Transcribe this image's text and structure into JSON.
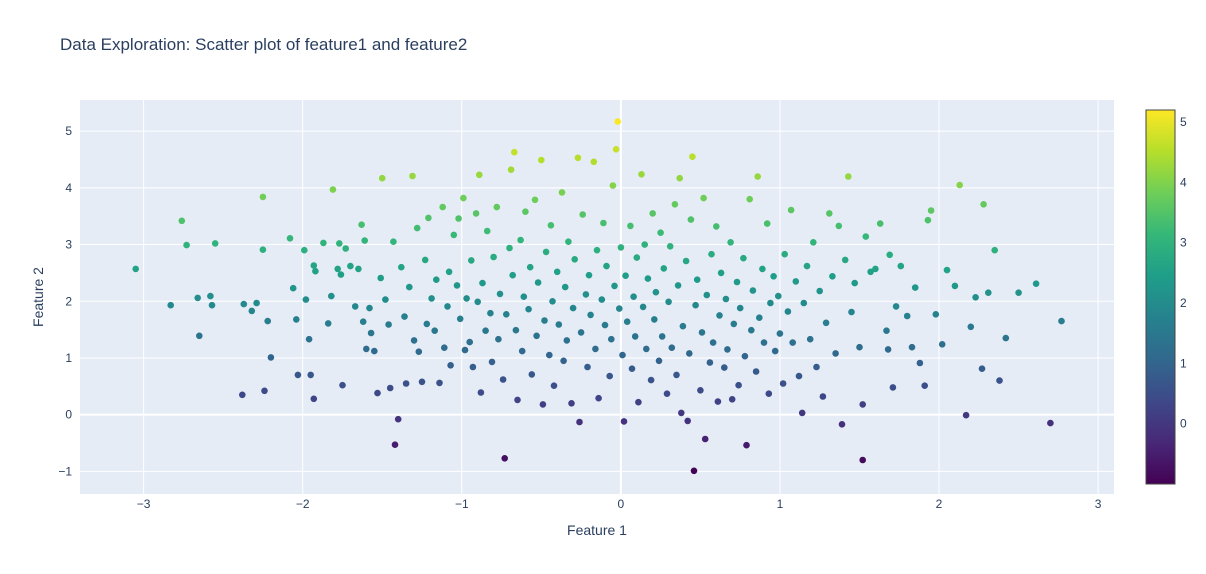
{
  "chart_data": {
    "type": "scatter",
    "title": "Data Exploration: Scatter plot of feature1 and feature2",
    "xlabel": "Feature 1",
    "ylabel": "Feature 2",
    "xlim": [
      -3.4,
      3.1
    ],
    "ylim": [
      -1.4,
      5.55
    ],
    "x_ticks": [
      -3,
      -2,
      -1,
      0,
      1,
      2,
      3
    ],
    "x_tick_labels": [
      "−3",
      "−2",
      "−1",
      "0",
      "1",
      "2",
      "3"
    ],
    "y_ticks": [
      -1,
      0,
      1,
      2,
      3,
      4,
      5
    ],
    "y_tick_labels": [
      "−1",
      "0",
      "1",
      "2",
      "3",
      "4",
      "5"
    ],
    "colorbar": {
      "colorscale": "Viridis",
      "range": [
        -1.0,
        5.2
      ],
      "ticks": [
        0,
        1,
        2,
        3,
        4,
        5
      ],
      "tick_labels": [
        "0",
        "1",
        "2",
        "3",
        "4",
        "5"
      ]
    },
    "grid": true,
    "colors": {
      "plot_bg": "#e5ecf6",
      "grid": "#ffffff",
      "text": "#2a3f5f"
    },
    "color_encodes": "y",
    "points": [
      [
        -3.05,
        2.57
      ],
      [
        -2.83,
        1.93
      ],
      [
        -2.76,
        3.42
      ],
      [
        -2.73,
        2.99
      ],
      [
        -2.66,
        2.06
      ],
      [
        -2.65,
        1.39
      ],
      [
        -2.58,
        2.09
      ],
      [
        -2.57,
        1.93
      ],
      [
        -2.55,
        3.02
      ],
      [
        -2.38,
        0.35
      ],
      [
        -2.37,
        1.95
      ],
      [
        -2.32,
        1.83
      ],
      [
        -2.29,
        1.97
      ],
      [
        -2.25,
        3.84
      ],
      [
        -2.25,
        2.91
      ],
      [
        -2.24,
        0.42
      ],
      [
        -2.22,
        1.65
      ],
      [
        -2.2,
        1.01
      ],
      [
        -2.08,
        3.11
      ],
      [
        -2.06,
        2.23
      ],
      [
        -2.04,
        1.68
      ],
      [
        -2.03,
        0.7
      ],
      [
        -1.99,
        2.9
      ],
      [
        -1.98,
        2.03
      ],
      [
        -1.96,
        1.33
      ],
      [
        -1.95,
        0.7
      ],
      [
        -1.93,
        0.28
      ],
      [
        -1.93,
        2.63
      ],
      [
        -1.92,
        2.53
      ],
      [
        -1.87,
        3.03
      ],
      [
        -1.84,
        1.61
      ],
      [
        -1.82,
        2.09
      ],
      [
        -1.81,
        3.97
      ],
      [
        -1.78,
        2.57
      ],
      [
        -1.77,
        3.02
      ],
      [
        -1.76,
        2.47
      ],
      [
        -1.75,
        0.52
      ],
      [
        -1.73,
        2.93
      ],
      [
        -1.7,
        2.62
      ],
      [
        -1.67,
        1.91
      ],
      [
        -1.65,
        2.57
      ],
      [
        -1.63,
        3.35
      ],
      [
        -1.62,
        1.64
      ],
      [
        -1.61,
        3.07
      ],
      [
        -1.6,
        1.16
      ],
      [
        -1.58,
        1.88
      ],
      [
        -1.57,
        1.44
      ],
      [
        -1.55,
        1.12
      ],
      [
        -1.53,
        0.38
      ],
      [
        -1.51,
        2.41
      ],
      [
        -1.5,
        4.17
      ],
      [
        -1.48,
        2.03
      ],
      [
        -1.46,
        1.59
      ],
      [
        -1.45,
        0.47
      ],
      [
        -1.43,
        3.05
      ],
      [
        -1.42,
        -0.53
      ],
      [
        -1.4,
        -0.08
      ],
      [
        -1.38,
        2.6
      ],
      [
        -1.36,
        1.73
      ],
      [
        -1.35,
        0.55
      ],
      [
        -1.33,
        2.25
      ],
      [
        -1.31,
        4.21
      ],
      [
        -1.3,
        1.31
      ],
      [
        -1.28,
        3.29
      ],
      [
        -1.27,
        1.11
      ],
      [
        -1.25,
        0.58
      ],
      [
        -1.23,
        2.73
      ],
      [
        -1.22,
        1.6
      ],
      [
        -1.21,
        3.47
      ],
      [
        -1.19,
        2.05
      ],
      [
        -1.17,
        1.48
      ],
      [
        -1.16,
        2.38
      ],
      [
        -1.14,
        0.56
      ],
      [
        -1.12,
        3.66
      ],
      [
        -1.11,
        1.18
      ],
      [
        -1.09,
        1.91
      ],
      [
        -1.08,
        2.52
      ],
      [
        -1.07,
        0.87
      ],
      [
        -1.05,
        3.17
      ],
      [
        -1.03,
        2.28
      ],
      [
        -1.02,
        3.46
      ],
      [
        -1.01,
        1.69
      ],
      [
        -0.99,
        3.82
      ],
      [
        -0.98,
        1.14
      ],
      [
        -0.97,
        2.05
      ],
      [
        -0.95,
        1.28
      ],
      [
        -0.94,
        2.72
      ],
      [
        -0.93,
        0.84
      ],
      [
        -0.91,
        3.55
      ],
      [
        -0.9,
        1.99
      ],
      [
        -0.89,
        4.23
      ],
      [
        -0.88,
        0.39
      ],
      [
        -0.87,
        2.32
      ],
      [
        -0.85,
        1.48
      ],
      [
        -0.84,
        3.24
      ],
      [
        -0.82,
        1.79
      ],
      [
        -0.81,
        0.93
      ],
      [
        -0.8,
        2.78
      ],
      [
        -0.78,
        3.66
      ],
      [
        -0.77,
        1.33
      ],
      [
        -0.76,
        2.13
      ],
      [
        -0.74,
        0.62
      ],
      [
        -0.73,
        -0.77
      ],
      [
        -0.72,
        1.77
      ],
      [
        -0.7,
        2.94
      ],
      [
        -0.69,
        4.32
      ],
      [
        -0.68,
        2.46
      ],
      [
        -0.67,
        4.63
      ],
      [
        -0.66,
        1.49
      ],
      [
        -0.65,
        0.26
      ],
      [
        -0.63,
        3.08
      ],
      [
        -0.62,
        1.12
      ],
      [
        -0.61,
        2.08
      ],
      [
        -0.6,
        3.58
      ],
      [
        -0.58,
        1.86
      ],
      [
        -0.57,
        2.6
      ],
      [
        -0.56,
        0.71
      ],
      [
        -0.54,
        3.79
      ],
      [
        -0.53,
        1.39
      ],
      [
        -0.52,
        2.33
      ],
      [
        -0.5,
        4.49
      ],
      [
        -0.49,
        0.18
      ],
      [
        -0.48,
        1.66
      ],
      [
        -0.47,
        2.87
      ],
      [
        -0.45,
        1.05
      ],
      [
        -0.44,
        3.34
      ],
      [
        -0.43,
        2.0
      ],
      [
        -0.42,
        0.51
      ],
      [
        -0.4,
        2.52
      ],
      [
        -0.39,
        1.59
      ],
      [
        -0.37,
        3.92
      ],
      [
        -0.36,
        0.95
      ],
      [
        -0.35,
        2.25
      ],
      [
        -0.34,
        1.31
      ],
      [
        -0.33,
        3.05
      ],
      [
        -0.31,
        0.2
      ],
      [
        -0.3,
        1.88
      ],
      [
        -0.29,
        2.74
      ],
      [
        -0.27,
        4.53
      ],
      [
        -0.26,
        -0.13
      ],
      [
        -0.25,
        1.45
      ],
      [
        -0.24,
        3.53
      ],
      [
        -0.22,
        2.12
      ],
      [
        -0.21,
        0.84
      ],
      [
        -0.2,
        2.46
      ],
      [
        -0.19,
        1.76
      ],
      [
        -0.17,
        4.46
      ],
      [
        -0.16,
        1.16
      ],
      [
        -0.15,
        2.9
      ],
      [
        -0.14,
        0.29
      ],
      [
        -0.12,
        2.03
      ],
      [
        -0.11,
        3.38
      ],
      [
        -0.1,
        1.58
      ],
      [
        -0.09,
        2.62
      ],
      [
        -0.07,
        0.68
      ],
      [
        -0.06,
        1.33
      ],
      [
        -0.05,
        4.04
      ],
      [
        -0.04,
        2.27
      ],
      [
        -0.03,
        4.68
      ],
      [
        -0.02,
        5.17
      ],
      [
        -0.01,
        1.87
      ],
      [
        0.0,
        2.95
      ],
      [
        0.01,
        1.05
      ],
      [
        0.02,
        -0.12
      ],
      [
        0.03,
        2.45
      ],
      [
        0.04,
        1.64
      ],
      [
        0.06,
        3.33
      ],
      [
        0.07,
        0.81
      ],
      [
        0.08,
        2.08
      ],
      [
        0.09,
        1.38
      ],
      [
        0.1,
        2.77
      ],
      [
        0.11,
        0.22
      ],
      [
        0.13,
        4.24
      ],
      [
        0.14,
        1.9
      ],
      [
        0.15,
        3.0
      ],
      [
        0.16,
        1.16
      ],
      [
        0.17,
        2.4
      ],
      [
        0.19,
        0.61
      ],
      [
        0.2,
        3.55
      ],
      [
        0.21,
        1.68
      ],
      [
        0.22,
        2.16
      ],
      [
        0.24,
        0.95
      ],
      [
        0.25,
        3.21
      ],
      [
        0.26,
        1.38
      ],
      [
        0.27,
        2.58
      ],
      [
        0.29,
        0.37
      ],
      [
        0.3,
        1.99
      ],
      [
        0.31,
        2.97
      ],
      [
        0.32,
        1.18
      ],
      [
        0.34,
        3.71
      ],
      [
        0.35,
        0.7
      ],
      [
        0.36,
        2.28
      ],
      [
        0.37,
        4.17
      ],
      [
        0.38,
        0.03
      ],
      [
        0.39,
        1.56
      ],
      [
        0.41,
        2.71
      ],
      [
        0.42,
        -0.11
      ],
      [
        0.43,
        1.08
      ],
      [
        0.44,
        3.44
      ],
      [
        0.45,
        4.55
      ],
      [
        0.46,
        -0.99
      ],
      [
        0.47,
        1.93
      ],
      [
        0.48,
        2.38
      ],
      [
        0.5,
        0.43
      ],
      [
        0.51,
        1.45
      ],
      [
        0.52,
        3.82
      ],
      [
        0.53,
        -0.43
      ],
      [
        0.54,
        2.11
      ],
      [
        0.56,
        0.92
      ],
      [
        0.57,
        2.83
      ],
      [
        0.58,
        1.27
      ],
      [
        0.6,
        3.32
      ],
      [
        0.61,
        0.23
      ],
      [
        0.62,
        1.75
      ],
      [
        0.63,
        2.5
      ],
      [
        0.65,
        0.83
      ],
      [
        0.66,
        2.04
      ],
      [
        0.67,
        1.15
      ],
      [
        0.69,
        3.04
      ],
      [
        0.7,
        0.27
      ],
      [
        0.71,
        1.6
      ],
      [
        0.73,
        2.34
      ],
      [
        0.74,
        0.52
      ],
      [
        0.75,
        1.88
      ],
      [
        0.77,
        2.76
      ],
      [
        0.78,
        1.03
      ],
      [
        0.79,
        -0.54
      ],
      [
        0.81,
        3.8
      ],
      [
        0.82,
        1.49
      ],
      [
        0.83,
        2.19
      ],
      [
        0.85,
        0.76
      ],
      [
        0.86,
        4.2
      ],
      [
        0.87,
        1.71
      ],
      [
        0.89,
        2.57
      ],
      [
        0.9,
        1.27
      ],
      [
        0.92,
        3.37
      ],
      [
        0.93,
        0.37
      ],
      [
        0.94,
        1.97
      ],
      [
        0.96,
        2.44
      ],
      [
        0.97,
        1.12
      ],
      [
        0.99,
        2.09
      ],
      [
        1.0,
        1.43
      ],
      [
        1.02,
        0.55
      ],
      [
        1.03,
        2.83
      ],
      [
        1.05,
        1.82
      ],
      [
        1.07,
        3.61
      ],
      [
        1.08,
        1.27
      ],
      [
        1.1,
        2.35
      ],
      [
        1.12,
        0.68
      ],
      [
        1.14,
        0.03
      ],
      [
        1.15,
        1.97
      ],
      [
        1.17,
        2.62
      ],
      [
        1.19,
        1.33
      ],
      [
        1.21,
        3.04
      ],
      [
        1.23,
        0.84
      ],
      [
        1.25,
        2.18
      ],
      [
        1.27,
        0.32
      ],
      [
        1.29,
        1.62
      ],
      [
        1.31,
        3.55
      ],
      [
        1.33,
        2.44
      ],
      [
        1.35,
        1.08
      ],
      [
        1.37,
        3.33
      ],
      [
        1.39,
        -0.17
      ],
      [
        1.41,
        2.73
      ],
      [
        1.43,
        4.2
      ],
      [
        1.45,
        1.81
      ],
      [
        1.47,
        2.32
      ],
      [
        1.5,
        1.19
      ],
      [
        1.52,
        -0.8
      ],
      [
        1.52,
        0.18
      ],
      [
        1.54,
        3.14
      ],
      [
        1.57,
        2.52
      ],
      [
        1.6,
        2.57
      ],
      [
        1.63,
        3.37
      ],
      [
        1.67,
        1.48
      ],
      [
        1.68,
        1.15
      ],
      [
        1.69,
        2.82
      ],
      [
        1.71,
        0.48
      ],
      [
        1.73,
        1.91
      ],
      [
        1.76,
        2.62
      ],
      [
        1.8,
        1.74
      ],
      [
        1.83,
        1.19
      ],
      [
        1.85,
        2.24
      ],
      [
        1.88,
        0.91
      ],
      [
        1.91,
        0.51
      ],
      [
        1.93,
        3.43
      ],
      [
        1.95,
        3.6
      ],
      [
        1.98,
        1.77
      ],
      [
        2.02,
        1.24
      ],
      [
        2.05,
        2.55
      ],
      [
        2.1,
        2.27
      ],
      [
        2.13,
        4.05
      ],
      [
        2.17,
        -0.01
      ],
      [
        2.2,
        1.55
      ],
      [
        2.23,
        2.07
      ],
      [
        2.27,
        0.81
      ],
      [
        2.28,
        3.71
      ],
      [
        2.31,
        2.15
      ],
      [
        2.35,
        2.9
      ],
      [
        2.38,
        0.6
      ],
      [
        2.42,
        1.35
      ],
      [
        2.5,
        2.15
      ],
      [
        2.61,
        2.31
      ],
      [
        2.7,
        -0.15
      ],
      [
        2.77,
        1.65
      ]
    ]
  }
}
